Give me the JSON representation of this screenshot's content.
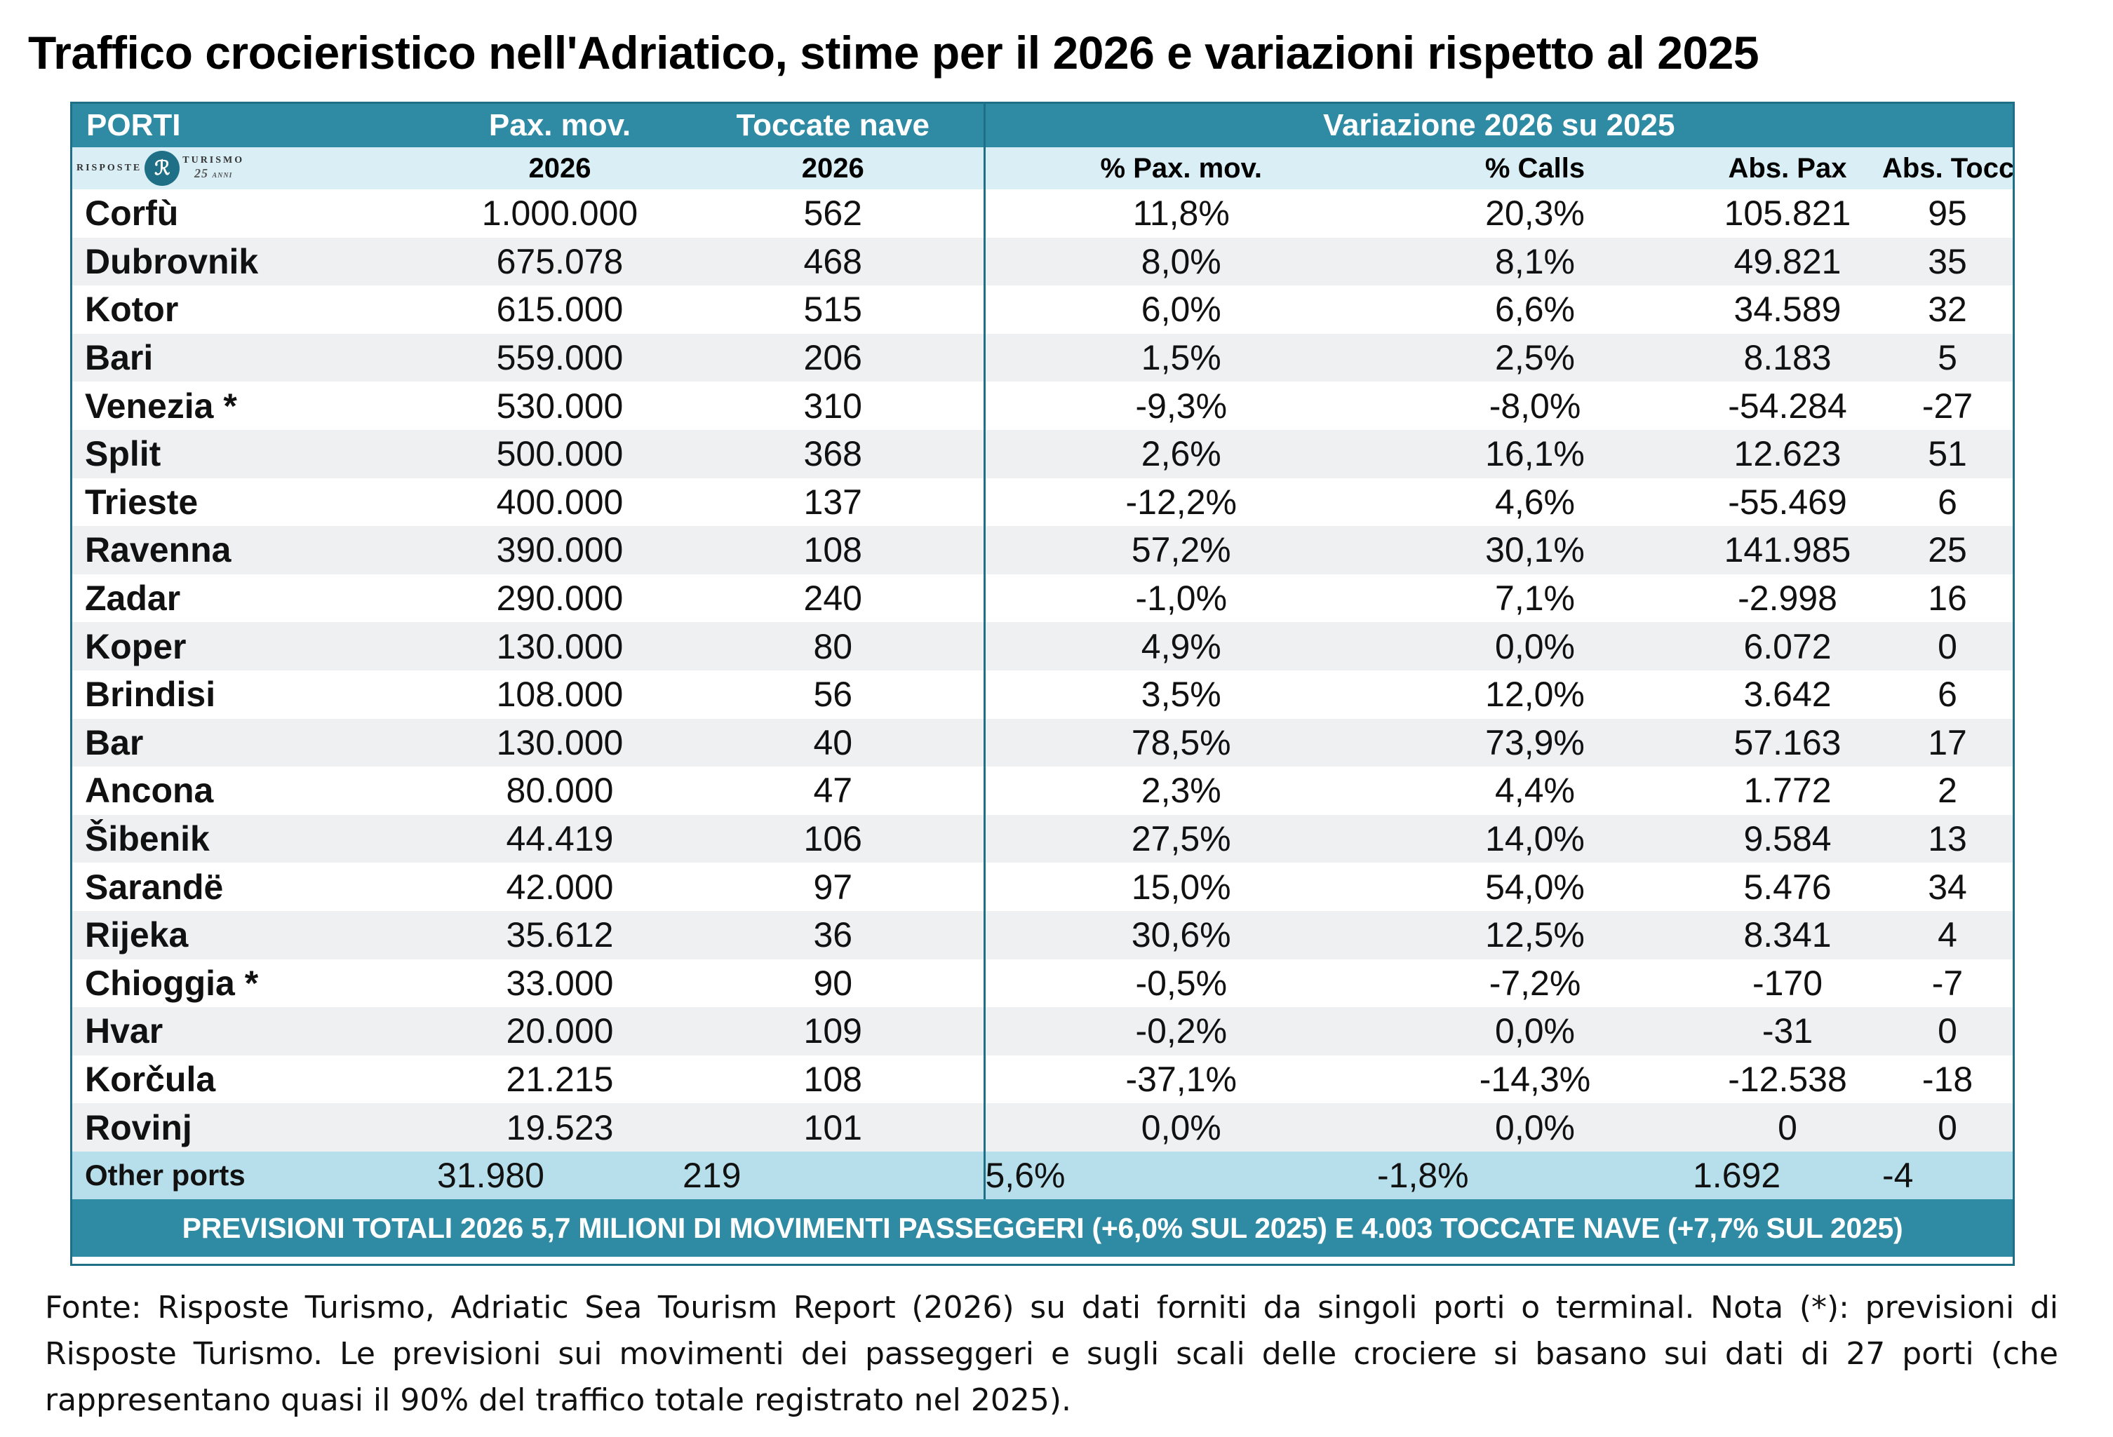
{
  "title": "Traffico crocieristico nell'Adriatico, stime per il 2026 e variazioni rispetto al 2025",
  "header": {
    "porti": "PORTI",
    "pax_mov": "Pax. mov.",
    "toccate_nave": "Toccate nave",
    "variazione": "Variazione 2026 su 2025",
    "year_pax": "2026",
    "year_toccate": "2026",
    "pct_pax": "% Pax. mov.",
    "pct_calls": "% Calls",
    "abs_pax": "Abs. Pax",
    "abs_tocc": "Abs. Tocc."
  },
  "logo": {
    "left_text": "RISPOSTE",
    "right_text": "TURISMO",
    "mark": "ℛ",
    "years": "25",
    "years_suffix": "ANNI"
  },
  "rows": [
    {
      "port": "Corfù",
      "pax": "1.000.000",
      "calls": "562",
      "pct_pax": "11,8%",
      "pct_calls": "20,3%",
      "abs_pax": "105.821",
      "abs_calls": "95"
    },
    {
      "port": "Dubrovnik",
      "pax": "675.078",
      "calls": "468",
      "pct_pax": "8,0%",
      "pct_calls": "8,1%",
      "abs_pax": "49.821",
      "abs_calls": "35"
    },
    {
      "port": "Kotor",
      "pax": "615.000",
      "calls": "515",
      "pct_pax": "6,0%",
      "pct_calls": "6,6%",
      "abs_pax": "34.589",
      "abs_calls": "32"
    },
    {
      "port": "Bari",
      "pax": "559.000",
      "calls": "206",
      "pct_pax": "1,5%",
      "pct_calls": "2,5%",
      "abs_pax": "8.183",
      "abs_calls": "5"
    },
    {
      "port": "Venezia *",
      "pax": "530.000",
      "calls": "310",
      "pct_pax": "-9,3%",
      "pct_calls": "-8,0%",
      "abs_pax": "-54.284",
      "abs_calls": "-27"
    },
    {
      "port": "Split",
      "pax": "500.000",
      "calls": "368",
      "pct_pax": "2,6%",
      "pct_calls": "16,1%",
      "abs_pax": "12.623",
      "abs_calls": "51"
    },
    {
      "port": "Trieste",
      "pax": "400.000",
      "calls": "137",
      "pct_pax": "-12,2%",
      "pct_calls": "4,6%",
      "abs_pax": "-55.469",
      "abs_calls": "6"
    },
    {
      "port": "Ravenna",
      "pax": "390.000",
      "calls": "108",
      "pct_pax": "57,2%",
      "pct_calls": "30,1%",
      "abs_pax": "141.985",
      "abs_calls": "25"
    },
    {
      "port": "Zadar",
      "pax": "290.000",
      "calls": "240",
      "pct_pax": "-1,0%",
      "pct_calls": "7,1%",
      "abs_pax": "-2.998",
      "abs_calls": "16"
    },
    {
      "port": "Koper",
      "pax": "130.000",
      "calls": "80",
      "pct_pax": "4,9%",
      "pct_calls": "0,0%",
      "abs_pax": "6.072",
      "abs_calls": "0"
    },
    {
      "port": "Brindisi",
      "pax": "108.000",
      "calls": "56",
      "pct_pax": "3,5%",
      "pct_calls": "12,0%",
      "abs_pax": "3.642",
      "abs_calls": "6"
    },
    {
      "port": "Bar",
      "pax": "130.000",
      "calls": "40",
      "pct_pax": "78,5%",
      "pct_calls": "73,9%",
      "abs_pax": "57.163",
      "abs_calls": "17"
    },
    {
      "port": "Ancona",
      "pax": "80.000",
      "calls": "47",
      "pct_pax": "2,3%",
      "pct_calls": "4,4%",
      "abs_pax": "1.772",
      "abs_calls": "2"
    },
    {
      "port": "Šibenik",
      "pax": "44.419",
      "calls": "106",
      "pct_pax": "27,5%",
      "pct_calls": "14,0%",
      "abs_pax": "9.584",
      "abs_calls": "13"
    },
    {
      "port": "Sarandë",
      "pax": "42.000",
      "calls": "97",
      "pct_pax": "15,0%",
      "pct_calls": "54,0%",
      "abs_pax": "5.476",
      "abs_calls": "34"
    },
    {
      "port": "Rijeka",
      "pax": "35.612",
      "calls": "36",
      "pct_pax": "30,6%",
      "pct_calls": "12,5%",
      "abs_pax": "8.341",
      "abs_calls": "4"
    },
    {
      "port": "Chioggia *",
      "pax": "33.000",
      "calls": "90",
      "pct_pax": "-0,5%",
      "pct_calls": "-7,2%",
      "abs_pax": "-170",
      "abs_calls": "-7"
    },
    {
      "port": "Hvar",
      "pax": "20.000",
      "calls": "109",
      "pct_pax": "-0,2%",
      "pct_calls": "0,0%",
      "abs_pax": "-31",
      "abs_calls": "0"
    },
    {
      "port": "Korčula",
      "pax": "21.215",
      "calls": "108",
      "pct_pax": "-37,1%",
      "pct_calls": "-14,3%",
      "abs_pax": "-12.538",
      "abs_calls": "-18"
    },
    {
      "port": "Rovinj",
      "pax": "19.523",
      "calls": "101",
      "pct_pax": "0,0%",
      "pct_calls": "0,0%",
      "abs_pax": "0",
      "abs_calls": "0"
    }
  ],
  "other": {
    "port": "Other ports",
    "pax": "31.980",
    "calls": "219",
    "pct_pax": "5,6%",
    "pct_calls": "-1,8%",
    "abs_pax": "1.692",
    "abs_calls": "-4"
  },
  "summary": "PREVISIONI TOTALI 2026 5,7 MILIONI DI MOVIMENTI PASSEGGERI (+6,0% SUL 2025) E 4.003 TOCCATE NAVE (+7,7% SUL 2025)",
  "source": "Fonte: Risposte Turismo, Adriatic Sea Tourism Report (2026) su dati forniti da singoli porti o terminal. Nota (*): previsioni di Risposte Turismo. Le previsioni sui movimenti dei passeggeri e sugli scali delle crociere si basano sui dati di 27 porti (che rappresentano quasi il 90% del traffico totale registrato nel 2025).",
  "colors": {
    "header_blue": "#2f8aa3",
    "subheader_light": "#d9eef5",
    "other_row": "#b7dfeb",
    "stripe": "#eef0f1"
  }
}
